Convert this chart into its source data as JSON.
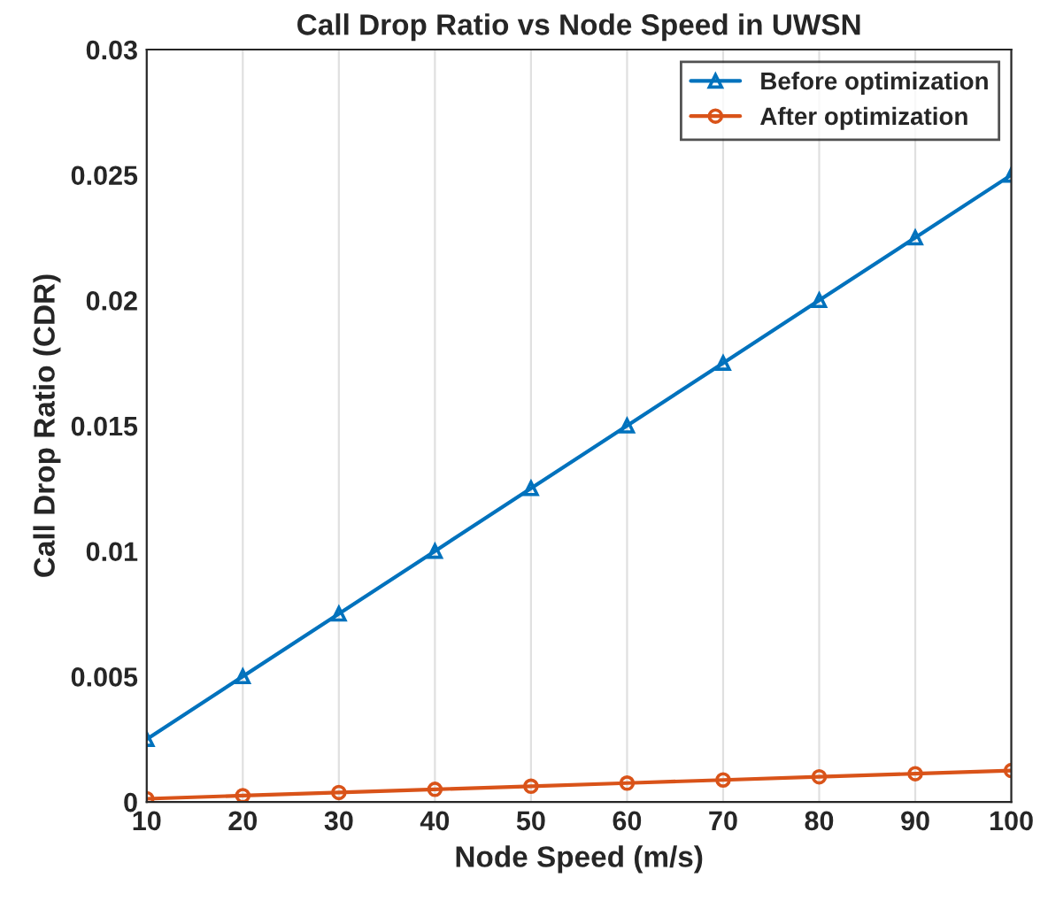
{
  "chart_data": {
    "type": "line",
    "title": "Call Drop Ratio vs Node Speed in UWSN",
    "xlabel": "Node Speed (m/s)",
    "ylabel": "Call Drop Ratio (CDR)",
    "x": [
      10,
      20,
      30,
      40,
      50,
      60,
      70,
      80,
      90,
      100
    ],
    "series": [
      {
        "name": "Before optimization",
        "color": "#0072bd",
        "marker": "triangle",
        "values": [
          0.0025,
          0.005,
          0.0075,
          0.01,
          0.0125,
          0.015,
          0.0175,
          0.02,
          0.0225,
          0.025
        ]
      },
      {
        "name": "After optimization",
        "color": "#d95319",
        "marker": "circle",
        "values": [
          0.000125,
          0.00025,
          0.000375,
          0.0005,
          0.000625,
          0.00075,
          0.000875,
          0.001,
          0.001125,
          0.00125
        ]
      }
    ],
    "xlim": [
      10,
      100
    ],
    "xticks": [
      10,
      20,
      30,
      40,
      50,
      60,
      70,
      80,
      90,
      100
    ],
    "ylim": [
      0,
      0.03
    ],
    "yticks": [
      0,
      0.005,
      0.01,
      0.015,
      0.02,
      0.025,
      0.03
    ],
    "grid": "x",
    "legend": "top right",
    "line_style": "solid"
  }
}
